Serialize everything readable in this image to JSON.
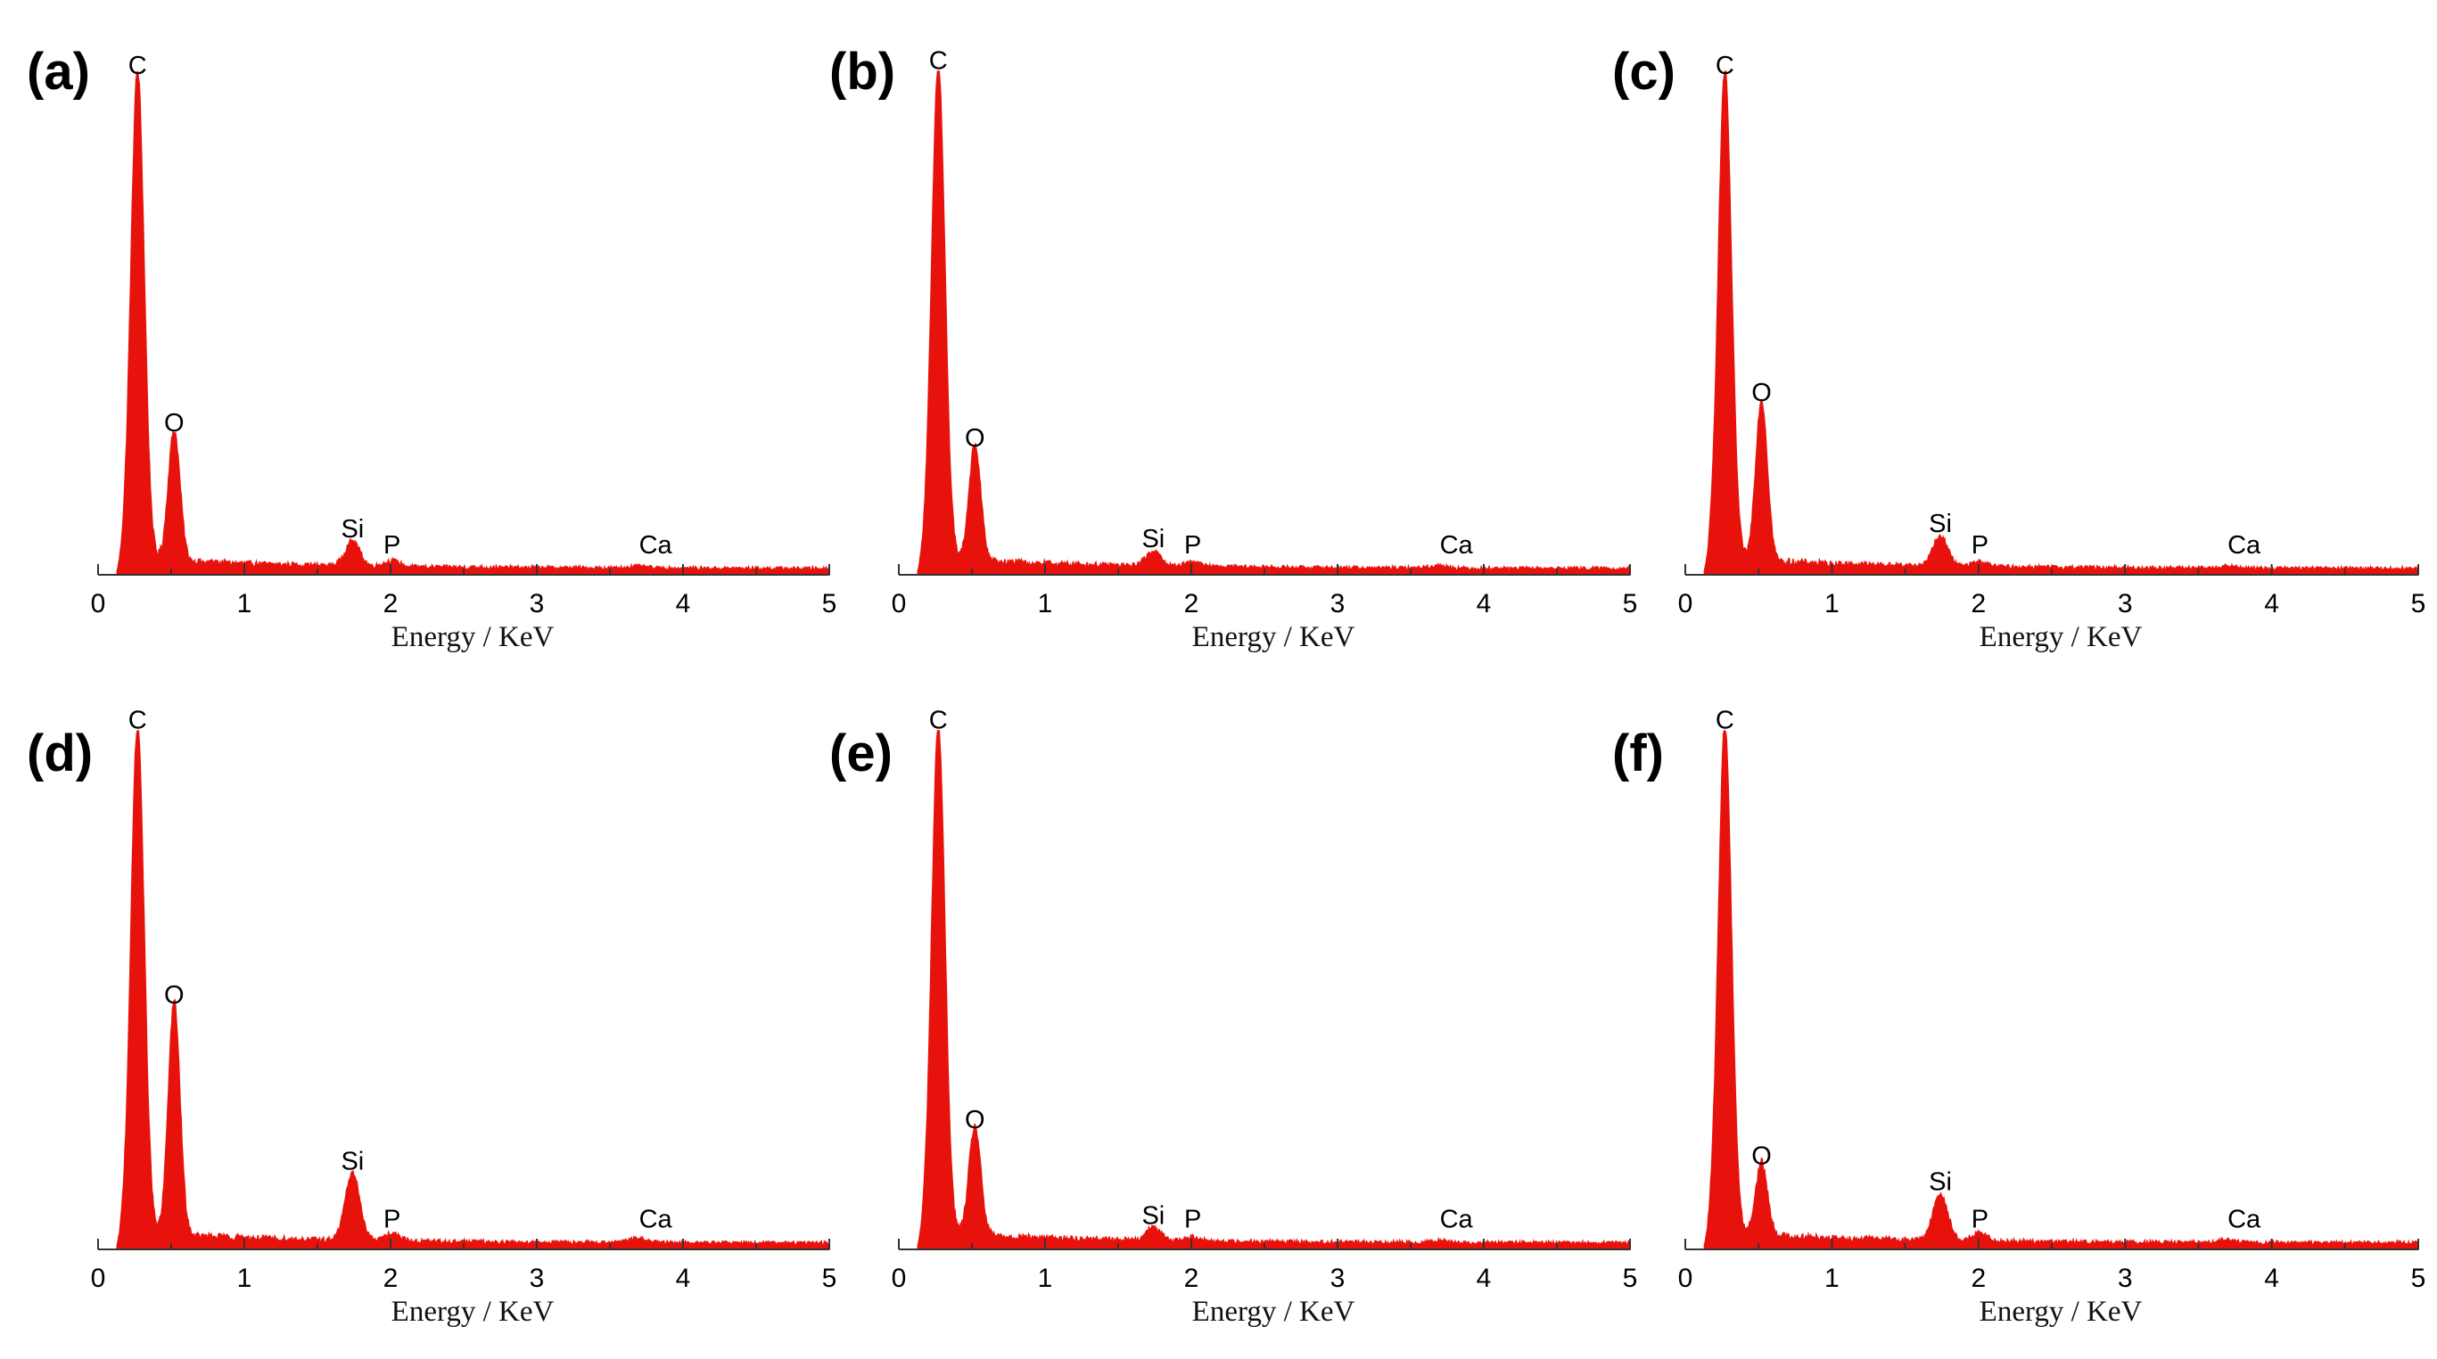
{
  "figure": {
    "panels": [
      "a",
      "b",
      "c",
      "d",
      "e",
      "f"
    ]
  },
  "style": {
    "spectrum_color": "#e8120c"
  },
  "chart_data": [
    {
      "type": "area",
      "panel_label": "(a)",
      "xlabel": "Energy / KeV",
      "ylabel": "",
      "xlim": [
        0,
        5
      ],
      "ylim": [
        0,
        1
      ],
      "xticks": [
        "0",
        "1",
        "2",
        "3",
        "4",
        "5"
      ],
      "baseline": 0.012,
      "peaks": [
        {
          "element": "C",
          "energy": 0.27,
          "intensity": 0.97,
          "width": 0.045
        },
        {
          "element": "O",
          "energy": 0.52,
          "intensity": 0.26,
          "width": 0.04
        },
        {
          "element": "Si",
          "energy": 1.74,
          "intensity": 0.05,
          "width": 0.05
        },
        {
          "element": "P",
          "energy": 2.01,
          "intensity": 0.012,
          "width": 0.05
        },
        {
          "element": "Ca",
          "energy": 3.69,
          "intensity": 0.004,
          "width": 0.06
        }
      ]
    },
    {
      "type": "area",
      "panel_label": "(b)",
      "xlabel": "Energy / KeV",
      "ylabel": "",
      "xlim": [
        0,
        5
      ],
      "ylim": [
        0,
        1
      ],
      "xticks": [
        "0",
        "1",
        "2",
        "3",
        "4",
        "5"
      ],
      "baseline": 0.012,
      "peaks": [
        {
          "element": "C",
          "energy": 0.27,
          "intensity": 0.98,
          "width": 0.045
        },
        {
          "element": "O",
          "energy": 0.52,
          "intensity": 0.23,
          "width": 0.04
        },
        {
          "element": "Si",
          "energy": 1.74,
          "intensity": 0.03,
          "width": 0.05
        },
        {
          "element": "P",
          "energy": 2.01,
          "intensity": 0.01,
          "width": 0.05
        },
        {
          "element": "Ca",
          "energy": 3.69,
          "intensity": 0.005,
          "width": 0.06
        }
      ]
    },
    {
      "type": "area",
      "panel_label": "(c)",
      "xlabel": "Energy / KeV",
      "ylabel": "",
      "xlim": [
        0,
        5
      ],
      "ylim": [
        0,
        1
      ],
      "xticks": [
        "0",
        "1",
        "2",
        "3",
        "4",
        "5"
      ],
      "baseline": 0.012,
      "peaks": [
        {
          "element": "C",
          "energy": 0.27,
          "intensity": 0.97,
          "width": 0.045
        },
        {
          "element": "O",
          "energy": 0.52,
          "intensity": 0.32,
          "width": 0.04
        },
        {
          "element": "Si",
          "energy": 1.74,
          "intensity": 0.06,
          "width": 0.05
        },
        {
          "element": "P",
          "energy": 2.01,
          "intensity": 0.01,
          "width": 0.05
        },
        {
          "element": "Ca",
          "energy": 3.69,
          "intensity": 0.004,
          "width": 0.06
        }
      ]
    },
    {
      "type": "area",
      "panel_label": "(d)",
      "xlabel": "Energy / KeV",
      "ylabel": "",
      "xlim": [
        0,
        5
      ],
      "ylim": [
        0,
        1
      ],
      "xticks": [
        "0",
        "1",
        "2",
        "3",
        "4",
        "5"
      ],
      "baseline": 0.012,
      "peaks": [
        {
          "element": "C",
          "energy": 0.27,
          "intensity": 0.98,
          "width": 0.045
        },
        {
          "element": "O",
          "energy": 0.52,
          "intensity": 0.45,
          "width": 0.04
        },
        {
          "element": "Si",
          "energy": 1.74,
          "intensity": 0.13,
          "width": 0.05
        },
        {
          "element": "P",
          "energy": 2.01,
          "intensity": 0.015,
          "width": 0.05
        },
        {
          "element": "Ca",
          "energy": 3.69,
          "intensity": 0.008,
          "width": 0.06
        }
      ]
    },
    {
      "type": "area",
      "panel_label": "(e)",
      "xlabel": "Energy / KeV",
      "ylabel": "",
      "xlim": [
        0,
        5
      ],
      "ylim": [
        0,
        1
      ],
      "xticks": [
        "0",
        "1",
        "2",
        "3",
        "4",
        "5"
      ],
      "baseline": 0.012,
      "peaks": [
        {
          "element": "C",
          "energy": 0.27,
          "intensity": 0.98,
          "width": 0.045
        },
        {
          "element": "O",
          "energy": 0.52,
          "intensity": 0.21,
          "width": 0.04
        },
        {
          "element": "Si",
          "energy": 1.74,
          "intensity": 0.025,
          "width": 0.05
        },
        {
          "element": "P",
          "energy": 2.01,
          "intensity": 0.008,
          "width": 0.05
        },
        {
          "element": "Ca",
          "energy": 3.69,
          "intensity": 0.004,
          "width": 0.06
        }
      ]
    },
    {
      "type": "area",
      "panel_label": "(f)",
      "xlabel": "Energy / KeV",
      "ylabel": "",
      "xlim": [
        0,
        5
      ],
      "ylim": [
        0,
        1
      ],
      "xticks": [
        "0",
        "1",
        "2",
        "3",
        "4",
        "5"
      ],
      "baseline": 0.012,
      "peaks": [
        {
          "element": "C",
          "energy": 0.27,
          "intensity": 0.98,
          "width": 0.045
        },
        {
          "element": "O",
          "energy": 0.52,
          "intensity": 0.14,
          "width": 0.04
        },
        {
          "element": "Si",
          "energy": 1.74,
          "intensity": 0.09,
          "width": 0.05
        },
        {
          "element": "P",
          "energy": 2.01,
          "intensity": 0.015,
          "width": 0.05
        },
        {
          "element": "Ca",
          "energy": 3.69,
          "intensity": 0.006,
          "width": 0.06
        }
      ]
    }
  ]
}
